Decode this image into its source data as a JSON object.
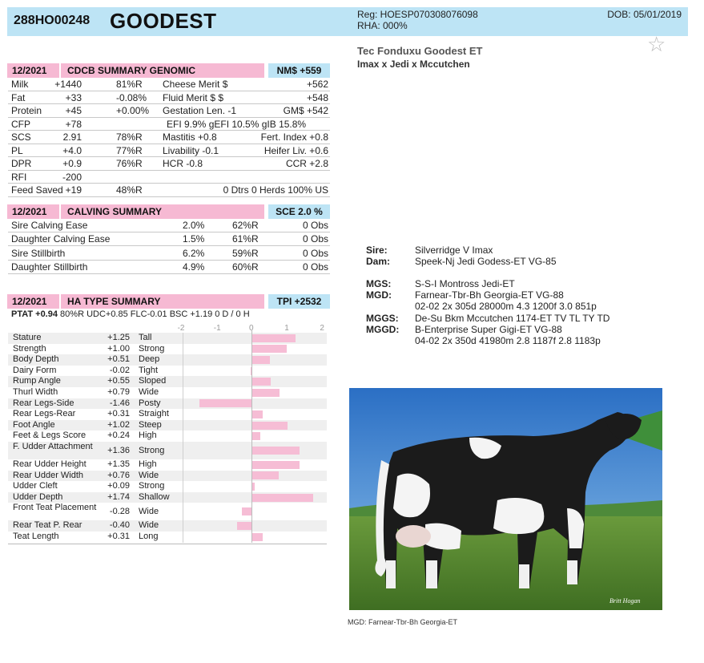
{
  "header": {
    "code": "288HO00248",
    "name": "GOODEST",
    "reg": "Reg: HOESP070308076098",
    "rha": "RHA: 000%",
    "dob": "DOB: 05/01/2019"
  },
  "long_name": "Tec Fonduxu Goodest ET",
  "pedigree_short": "Imax x Jedi x Mccutchen",
  "genomic": {
    "date": "12/2021",
    "title": "CDCB SUMMARY GENOMIC",
    "badge": "NM$ +559",
    "rows": [
      [
        "Milk",
        "+1440",
        "81%R",
        "Cheese Merit $",
        "+562"
      ],
      [
        "Fat",
        "+33",
        "-0.08%",
        "Fluid Merit $ $",
        "+548"
      ],
      [
        "Protein",
        "+45",
        "+0.00%",
        "Gestation Len. -1",
        "GM$  +542"
      ],
      [
        "CFP",
        "+78",
        "",
        "EFI  9.9%   gEFI  10.5%   gIB 15.8%",
        ""
      ],
      [
        "SCS",
        "2.91",
        "78%R",
        "Mastitis  +0.8",
        "Fert. Index  +0.8"
      ],
      [
        "PL",
        "+4.0",
        "77%R",
        "Livability  -0.1",
        "Heifer Liv.  +0.6"
      ],
      [
        "DPR",
        "+0.9",
        "76%R",
        "HCR   -0.8",
        "CCR  +2.8"
      ],
      [
        "RFI",
        "-200",
        "",
        "",
        ""
      ],
      [
        "Feed Saved",
        "+19",
        "48%R",
        "0 Dtrs  0 Herds  100% US",
        ""
      ]
    ]
  },
  "calving": {
    "date": "12/2021",
    "title": "CALVING SUMMARY",
    "badge": "SCE 2.0 %",
    "rows": [
      [
        "Sire Calving Ease",
        "2.0%",
        "62%R",
        "0 Obs"
      ],
      [
        "Daughter Calving Ease",
        "1.5%",
        "61%R",
        "0 Obs"
      ],
      [
        "Sire Stillbirth",
        "6.2%",
        "59%R",
        "0 Obs"
      ],
      [
        "Daughter Stillbirth",
        "4.9%",
        "60%R",
        "0 Obs"
      ]
    ]
  },
  "type": {
    "date": "12/2021",
    "title": "HA TYPE SUMMARY",
    "badge": "TPI +2532",
    "ptat_label": "PTAT +0.94",
    "ptat_rest": "80%R   UDC+0.85   FLC-0.01   BSC +1.19   0 D / 0 H",
    "axis_ticks": [
      "-2",
      "-1",
      "0",
      "1",
      "2"
    ]
  },
  "chart_data": {
    "type": "bar",
    "categories": [
      "Stature",
      "Strength",
      "Body Depth",
      "Dairy Form",
      "Rump Angle",
      "Thurl Width",
      "Rear Legs-Side",
      "Rear Legs-Rear",
      "Foot Angle",
      "Feet & Legs Score",
      "F. Udder Attachment",
      "Rear Udder Height",
      "Rear Udder Width",
      "Udder Cleft",
      "Udder Depth",
      "Front Teat Placement",
      "Rear Teat P. Rear",
      "Teat Length"
    ],
    "value_labels": [
      "+1.25",
      "+1.00",
      "+0.51",
      "-0.02",
      "+0.55",
      "+0.79",
      "-1.46",
      "+0.31",
      "+1.02",
      "+0.24",
      "+1.36",
      "+1.35",
      "+0.76",
      "+0.09",
      "+1.74",
      "-0.28",
      "-0.40",
      "+0.31"
    ],
    "values": [
      1.25,
      1.0,
      0.51,
      -0.02,
      0.55,
      0.79,
      -1.46,
      0.31,
      1.02,
      0.24,
      1.36,
      1.35,
      0.76,
      0.09,
      1.74,
      -0.28,
      -0.4,
      0.31
    ],
    "descriptors": [
      "Tall",
      "Strong",
      "Deep",
      "Tight",
      "Sloped",
      "Wide",
      "Posty",
      "Straight",
      "Steep",
      "High",
      "Strong",
      "High",
      "Wide",
      "Strong",
      "Shallow",
      "Wide",
      "Wide",
      "Long"
    ],
    "xlim": [
      -2,
      2
    ],
    "bar_color": "#f6bdd5"
  },
  "pedigree": [
    [
      "Sire:",
      "Silverridge V Imax"
    ],
    [
      "Dam:",
      "Speek-Nj Jedi Godess-ET VG-85"
    ],
    [
      "MGS:",
      "S-S-I Montross Jedi-ET"
    ],
    [
      "MGD:",
      "Farnear-Tbr-Bh Georgia-ET VG-88"
    ],
    [
      "",
      "02-02 2x 305d 28000m 4.3 1200f 3.0 851p"
    ],
    [
      "MGGS:",
      "De-Su Bkm Mccutchen 1174-ET TV TL TY TD"
    ],
    [
      "MGGD:",
      "B-Enterprise Super Gigi-ET VG-88"
    ],
    [
      "",
      "04-02 2x 350d 41980m 2.8 1187f 2.8 1183p"
    ]
  ],
  "photo_signature": "Britt Hogan",
  "photo_caption": "MGD: Farnear-Tbr-Bh Georgia-ET",
  "colors": {
    "header_blue": "#bde4f5",
    "section_pink": "#f6b9d3",
    "bar_pink": "#f6bdd5"
  }
}
